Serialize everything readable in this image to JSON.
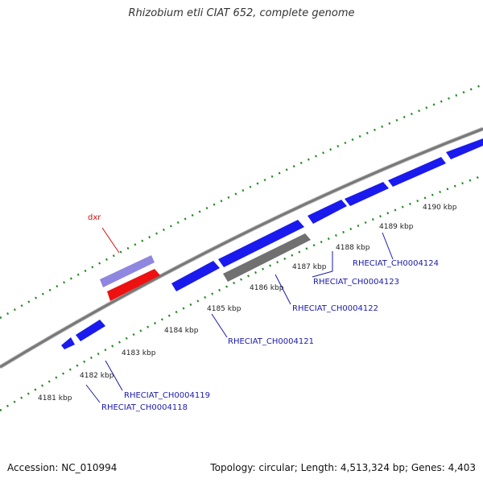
{
  "title": "Rhizobium etli CIAT 652, complete genome",
  "footer": {
    "accession": "Accession: NC_010994",
    "info": "Topology: circular; Length: 4,513,324 bp; Genes: 4,403"
  },
  "colors": {
    "backbone": "#777777",
    "ticks": "#1e8a1e",
    "forward_gene": "#8f86e0",
    "forward_rrna": "#ee1111",
    "reverse_gene": "#1a1aee",
    "pseudo_gene": "#707070",
    "forward_label": "#cc1111",
    "reverse_label": "#1a1aaa"
  },
  "scale_labels": [
    "4181 kbp",
    "4182 kbp",
    "4183 kbp",
    "4184 kbp",
    "4185 kbp",
    "4186 kbp",
    "4187 kbp",
    "4188 kbp",
    "4189 kbp",
    "4190 kbp"
  ],
  "forward_labels": [
    {
      "text": "dxr"
    }
  ],
  "reverse_labels": [
    {
      "text": "RHECIAT_CH0004118"
    },
    {
      "text": "RHECIAT_CH0004119"
    },
    {
      "text": "RHECIAT_CH0004121"
    },
    {
      "text": "RHECIAT_CH0004122"
    },
    {
      "text": "RHECIAT_CH0004123"
    },
    {
      "text": "RHECIAT_CH0004124"
    }
  ]
}
